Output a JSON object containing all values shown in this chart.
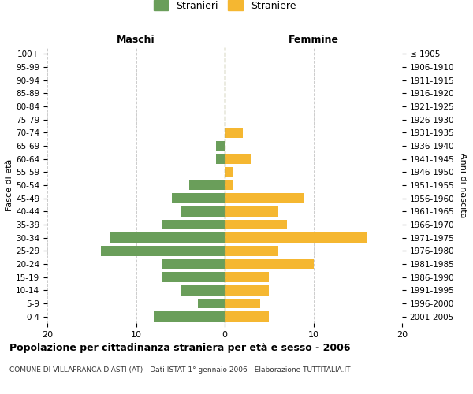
{
  "age_groups": [
    "100+",
    "95-99",
    "90-94",
    "85-89",
    "80-84",
    "75-79",
    "70-74",
    "65-69",
    "60-64",
    "55-59",
    "50-54",
    "45-49",
    "40-44",
    "35-39",
    "30-34",
    "25-29",
    "20-24",
    "15-19",
    "10-14",
    "5-9",
    "0-4"
  ],
  "birth_years": [
    "≤ 1905",
    "1906-1910",
    "1911-1915",
    "1916-1920",
    "1921-1925",
    "1926-1930",
    "1931-1935",
    "1936-1940",
    "1941-1945",
    "1946-1950",
    "1951-1955",
    "1956-1960",
    "1961-1965",
    "1966-1970",
    "1971-1975",
    "1976-1980",
    "1981-1985",
    "1986-1990",
    "1991-1995",
    "1996-2000",
    "2001-2005"
  ],
  "maschi": [
    0,
    0,
    0,
    0,
    0,
    0,
    0,
    1,
    1,
    0,
    4,
    6,
    5,
    7,
    13,
    14,
    7,
    7,
    5,
    3,
    8
  ],
  "femmine": [
    0,
    0,
    0,
    0,
    0,
    0,
    2,
    0,
    3,
    1,
    1,
    9,
    6,
    7,
    16,
    6,
    10,
    5,
    5,
    4,
    5
  ],
  "color_maschi": "#6a9e5a",
  "color_femmine": "#f5b731",
  "title": "Popolazione per cittadinanza straniera per età e sesso - 2006",
  "subtitle": "COMUNE DI VILLAFRANCA D'ASTI (AT) - Dati ISTAT 1° gennaio 2006 - Elaborazione TUTTITALIA.IT",
  "xlabel_left": "Maschi",
  "xlabel_right": "Femmine",
  "ylabel_left": "Fasce di età",
  "ylabel_right": "Anni di nascita",
  "legend_maschi": "Stranieri",
  "legend_femmine": "Straniere",
  "xlim": 20,
  "background_color": "#ffffff",
  "grid_color": "#cccccc",
  "bar_height": 0.75
}
